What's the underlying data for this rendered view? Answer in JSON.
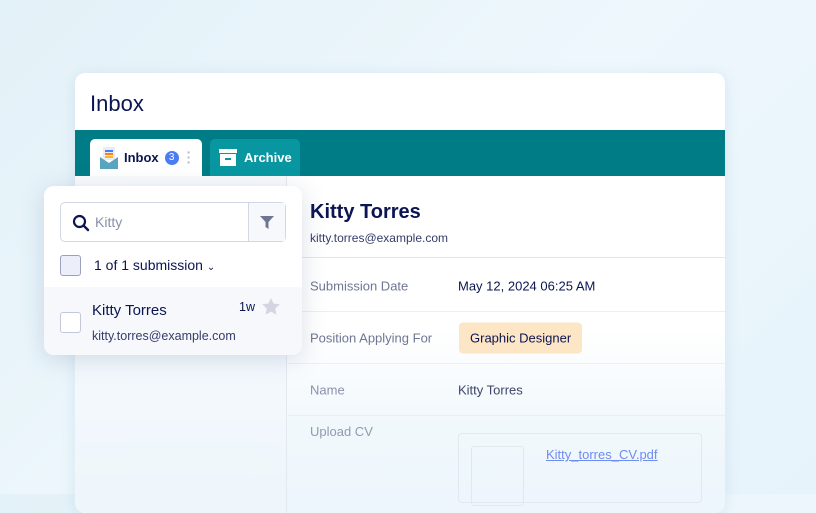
{
  "header": {
    "title": "Inbox"
  },
  "tabs": [
    {
      "label": "Inbox",
      "badge": "3"
    },
    {
      "label": "Archive"
    }
  ],
  "popup": {
    "search": {
      "value": "Kitty"
    },
    "count_label": "1 of 1 submission",
    "items": [
      {
        "name": "Kitty Torres",
        "email": "kitty.torres@example.com",
        "age": "1w",
        "starred": false
      }
    ]
  },
  "detail": {
    "name": "Kitty Torres",
    "email": "kitty.torres@example.com",
    "fields": [
      {
        "label": "Submission Date",
        "value": "May 12, 2024 06:25 AM"
      },
      {
        "label": "Position Applying For",
        "value": "Graphic Designer"
      },
      {
        "label": "Name",
        "value": "Kitty Torres"
      },
      {
        "label": "Upload CV",
        "value": "Kitty_torres_CV.pdf"
      }
    ]
  },
  "colors": {
    "teal": "#007c86",
    "badge": "#4c7cf4",
    "chip": "#fde6c6",
    "navy": "#0a1551"
  }
}
